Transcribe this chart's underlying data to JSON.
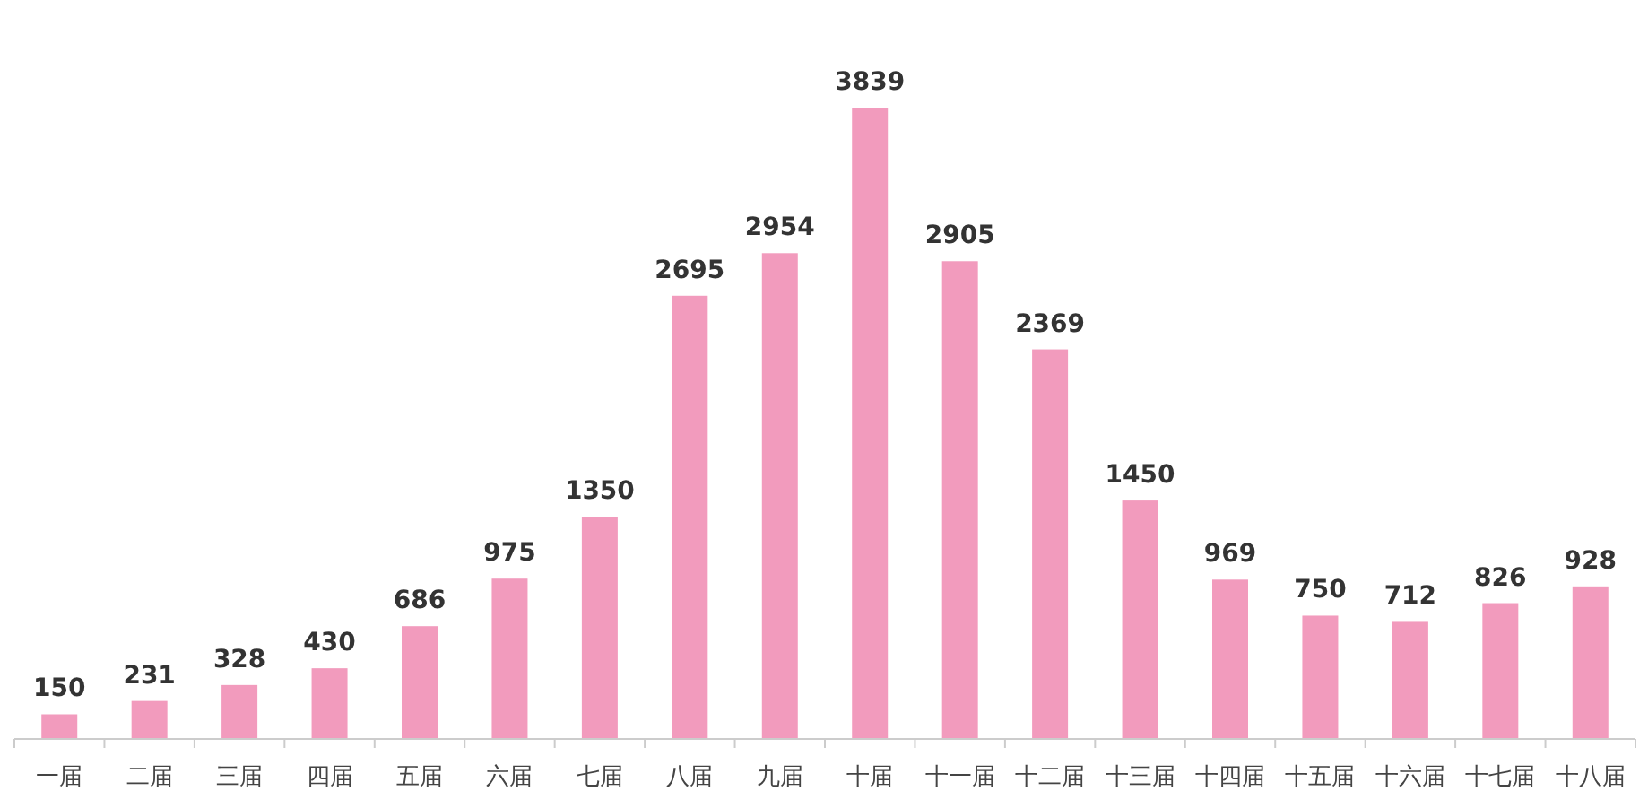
{
  "chart_data": {
    "type": "bar",
    "categories": [
      "一届",
      "二届",
      "三届",
      "四届",
      "五届",
      "六届",
      "七届",
      "八届",
      "九届",
      "十届",
      "十一届",
      "十二届",
      "十三届",
      "十四届",
      "十五届",
      "十六届",
      "十七届",
      "十八届"
    ],
    "values": [
      150,
      231,
      328,
      430,
      686,
      975,
      1350,
      2695,
      2954,
      3839,
      2905,
      2369,
      1450,
      969,
      750,
      712,
      826,
      928
    ],
    "color": "#f29bbd",
    "data_labels": true
  }
}
